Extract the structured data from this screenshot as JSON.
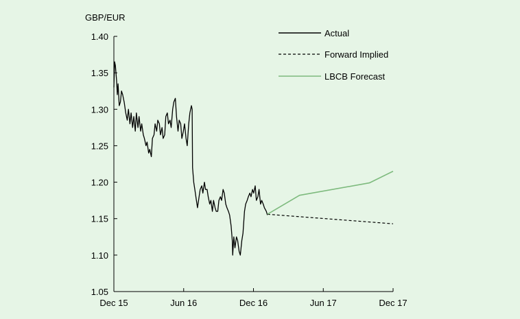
{
  "chart_data": {
    "type": "line",
    "title": "",
    "ylabel": "GBP/EUR",
    "xlabel": "",
    "ylim": [
      1.05,
      1.4
    ],
    "yticks": [
      "1.05",
      "1.10",
      "1.15",
      "1.20",
      "1.25",
      "1.30",
      "1.35",
      "1.40"
    ],
    "xticks": [
      "Dec 15",
      "Jun 16",
      "Dec 16",
      "Jun 17",
      "Dec 17"
    ],
    "xlim": [
      "2015-12-01",
      "2017-12-01"
    ],
    "grid": false,
    "legend_position": "top-right",
    "series": [
      {
        "name": "Actual",
        "style": "solid",
        "color": "#000000",
        "x": [
          "2015-12-01",
          "2015-12-03",
          "2015-12-05",
          "2015-12-08",
          "2015-12-10",
          "2015-12-12",
          "2015-12-15",
          "2015-12-18",
          "2015-12-21",
          "2015-12-24",
          "2015-12-28",
          "2016-01-01",
          "2016-01-05",
          "2016-01-08",
          "2016-01-12",
          "2016-01-15",
          "2016-01-19",
          "2016-01-22",
          "2016-01-26",
          "2016-01-29",
          "2016-02-02",
          "2016-02-05",
          "2016-02-09",
          "2016-02-12",
          "2016-02-16",
          "2016-02-19",
          "2016-02-23",
          "2016-02-26",
          "2016-03-01",
          "2016-03-04",
          "2016-03-08",
          "2016-03-11",
          "2016-03-15",
          "2016-03-18",
          "2016-03-22",
          "2016-03-25",
          "2016-03-29",
          "2016-04-01",
          "2016-04-05",
          "2016-04-08",
          "2016-04-12",
          "2016-04-15",
          "2016-04-19",
          "2016-04-22",
          "2016-04-26",
          "2016-04-29",
          "2016-05-03",
          "2016-05-06",
          "2016-05-10",
          "2016-05-13",
          "2016-05-17",
          "2016-05-20",
          "2016-05-24",
          "2016-05-27",
          "2016-05-31",
          "2016-06-03",
          "2016-06-07",
          "2016-06-10",
          "2016-06-14",
          "2016-06-17",
          "2016-06-21",
          "2016-06-23",
          "2016-06-24",
          "2016-06-27",
          "2016-06-30",
          "2016-07-04",
          "2016-07-07",
          "2016-07-11",
          "2016-07-14",
          "2016-07-18",
          "2016-07-21",
          "2016-07-25",
          "2016-07-28",
          "2016-08-01",
          "2016-08-04",
          "2016-08-08",
          "2016-08-11",
          "2016-08-15",
          "2016-08-18",
          "2016-08-22",
          "2016-08-25",
          "2016-08-29",
          "2016-09-01",
          "2016-09-05",
          "2016-09-08",
          "2016-09-12",
          "2016-09-15",
          "2016-09-19",
          "2016-09-22",
          "2016-09-26",
          "2016-09-29",
          "2016-10-03",
          "2016-10-06",
          "2016-10-07",
          "2016-10-10",
          "2016-10-13",
          "2016-10-17",
          "2016-10-20",
          "2016-10-24",
          "2016-10-27",
          "2016-10-31",
          "2016-11-03",
          "2016-11-07",
          "2016-11-10",
          "2016-11-14",
          "2016-11-17",
          "2016-11-21",
          "2016-11-24",
          "2016-11-28",
          "2016-12-01",
          "2016-12-05",
          "2016-12-08",
          "2016-12-12",
          "2016-12-15",
          "2016-12-19",
          "2016-12-22",
          "2016-12-26",
          "2016-12-29",
          "2017-01-03",
          "2017-01-06"
        ],
        "y": [
          1.33,
          1.365,
          1.36,
          1.34,
          1.32,
          1.335,
          1.305,
          1.31,
          1.325,
          1.32,
          1.31,
          1.295,
          1.285,
          1.3,
          1.28,
          1.295,
          1.275,
          1.29,
          1.27,
          1.295,
          1.275,
          1.29,
          1.27,
          1.28,
          1.265,
          1.26,
          1.25,
          1.255,
          1.24,
          1.245,
          1.235,
          1.26,
          1.265,
          1.28,
          1.27,
          1.285,
          1.28,
          1.265,
          1.275,
          1.26,
          1.265,
          1.29,
          1.295,
          1.28,
          1.285,
          1.275,
          1.3,
          1.31,
          1.315,
          1.29,
          1.27,
          1.285,
          1.28,
          1.26,
          1.27,
          1.28,
          1.26,
          1.25,
          1.28,
          1.295,
          1.305,
          1.3,
          1.22,
          1.2,
          1.19,
          1.175,
          1.165,
          1.18,
          1.19,
          1.195,
          1.185,
          1.2,
          1.19,
          1.19,
          1.18,
          1.17,
          1.175,
          1.16,
          1.175,
          1.165,
          1.16,
          1.16,
          1.175,
          1.18,
          1.175,
          1.19,
          1.185,
          1.17,
          1.165,
          1.16,
          1.155,
          1.14,
          1.12,
          1.1,
          1.125,
          1.11,
          1.125,
          1.12,
          1.105,
          1.1,
          1.12,
          1.13,
          1.16,
          1.17,
          1.175,
          1.18,
          1.185,
          1.18,
          1.19,
          1.185,
          1.195,
          1.175,
          1.18,
          1.19,
          1.17,
          1.175,
          1.17,
          1.165,
          1.16,
          1.155
        ]
      },
      {
        "name": "Forward Implied",
        "style": "dashed",
        "color": "#000000",
        "x": [
          "2017-01-06",
          "2017-12-01"
        ],
        "y": [
          1.156,
          1.143
        ]
      },
      {
        "name": "LBCB Forecast",
        "style": "solid",
        "color": "#7dba7d",
        "x": [
          "2017-01-06",
          "2017-03-31",
          "2017-09-30",
          "2017-12-01"
        ],
        "y": [
          1.156,
          1.182,
          1.199,
          1.215
        ]
      }
    ]
  }
}
